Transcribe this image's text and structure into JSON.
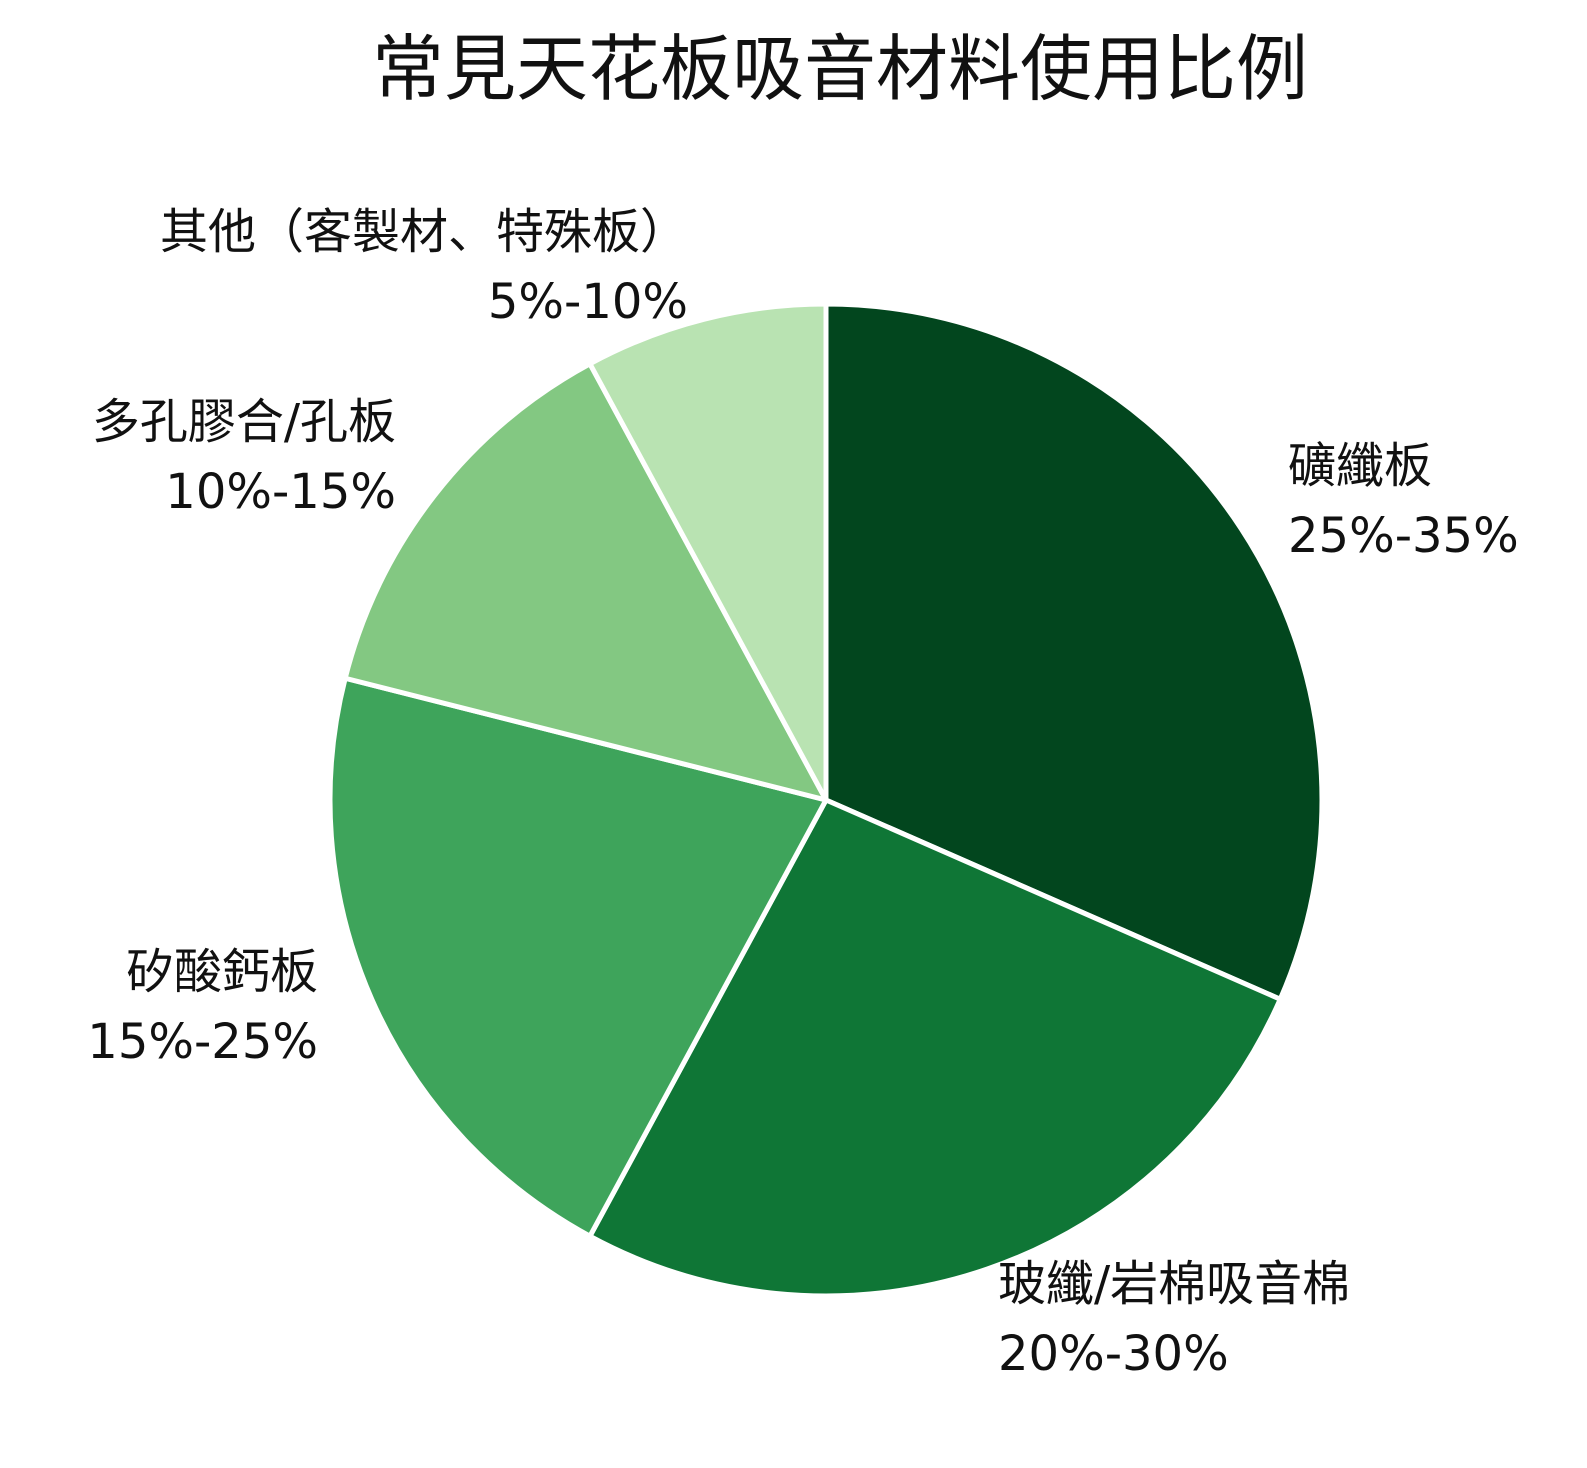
{
  "chart_data": {
    "type": "pie",
    "title": "常見天花板吸音材料使用比例",
    "start_angle_deg": 0,
    "direction": "clockwise",
    "slices": [
      {
        "label": "礦纖板",
        "range_text": "25%-35%",
        "value": 30,
        "color": "#02461e"
      },
      {
        "label": "玻纖/岩棉吸音棉",
        "range_text": "20%-30%",
        "value": 25,
        "color": "#0f7636"
      },
      {
        "label": "矽酸鈣板",
        "range_text": "15%-25%",
        "value": 20,
        "color": "#3ea45b"
      },
      {
        "label": "多孔膠合/孔板",
        "range_text": "10%-15%",
        "value": 12.5,
        "color": "#83c882"
      },
      {
        "label": "其他（客製材、特殊板）",
        "range_text": "5%-10%",
        "value": 7.5,
        "color": "#b9e3b2"
      }
    ]
  }
}
